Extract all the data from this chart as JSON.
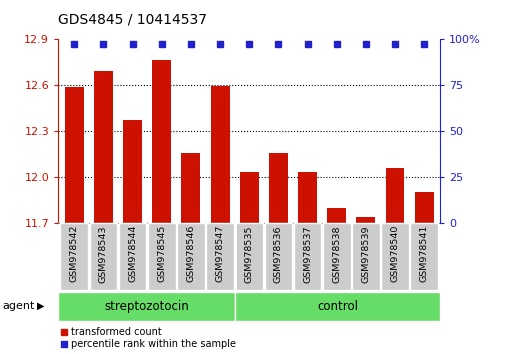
{
  "title": "GDS4845 / 10414537",
  "samples": [
    "GSM978542",
    "GSM978543",
    "GSM978544",
    "GSM978545",
    "GSM978546",
    "GSM978547",
    "GSM978535",
    "GSM978536",
    "GSM978537",
    "GSM978538",
    "GSM978539",
    "GSM978540",
    "GSM978541"
  ],
  "bar_values": [
    12.585,
    12.69,
    12.37,
    12.76,
    12.155,
    12.595,
    12.035,
    12.155,
    12.035,
    11.795,
    11.74,
    12.06,
    11.9
  ],
  "percentile_values": [
    100,
    100,
    100,
    100,
    100,
    100,
    100,
    100,
    100,
    100,
    100,
    100,
    100
  ],
  "ymin": 11.7,
  "ymax": 12.9,
  "yticks": [
    11.7,
    12.0,
    12.3,
    12.6,
    12.9
  ],
  "bar_color": "#cc1100",
  "percentile_color": "#2222cc",
  "group1_label": "streptozotocin",
  "group1_count": 6,
  "group2_label": "control",
  "group2_count": 7,
  "agent_label": "agent",
  "legend1": "transformed count",
  "legend2": "percentile rank within the sample",
  "group_color": "#66dd66",
  "tick_label_bg": "#cccccc",
  "right_ylabels": [
    "0",
    "25",
    "50",
    "75",
    "100%"
  ],
  "bg_color": "#ffffff"
}
